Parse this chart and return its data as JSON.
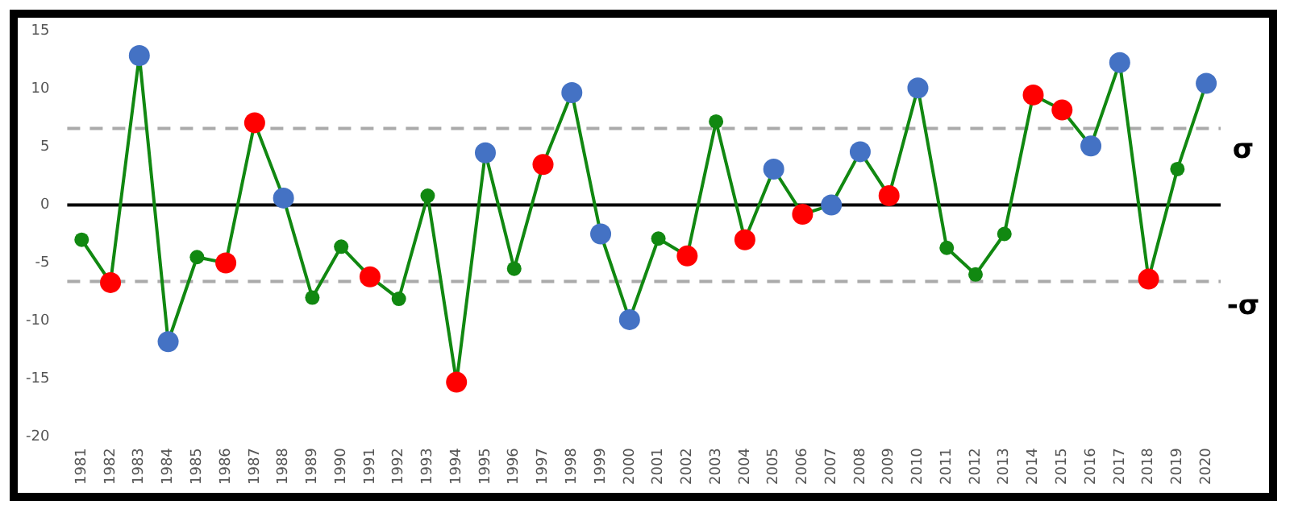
{
  "chart_data": {
    "type": "line",
    "categories": [
      "1981",
      "1982",
      "1983",
      "1984",
      "1985",
      "1986",
      "1987",
      "1988",
      "1989",
      "1990",
      "1991",
      "1992",
      "1993",
      "1994",
      "1995",
      "1996",
      "1997",
      "1998",
      "1999",
      "2000",
      "2001",
      "2002",
      "2003",
      "2004",
      "2005",
      "2006",
      "2007",
      "2008",
      "2009",
      "2010",
      "2011",
      "2012",
      "2013",
      "2014",
      "2015",
      "2016",
      "2017",
      "2018",
      "2019",
      "2020"
    ],
    "series": [
      {
        "color": "#118811",
        "values": [
          -3.0,
          -6.7,
          12.9,
          -11.8,
          -4.5,
          -5.0,
          7.1,
          0.6,
          -8.0,
          -3.6,
          -6.2,
          -8.1,
          0.8,
          -15.3,
          4.5,
          -5.5,
          3.5,
          9.7,
          -2.5,
          -9.9,
          -2.9,
          -4.4,
          7.2,
          -3.0,
          3.1,
          -0.8,
          0.0,
          4.6,
          0.8,
          10.1,
          -3.7,
          -6.0,
          -2.5,
          9.5,
          8.2,
          5.1,
          12.3,
          -6.4,
          3.1,
          10.5
        ],
        "colors": [
          "#118811",
          "#ff0000",
          "#4472c4",
          "#4472c4",
          "#118811",
          "#ff0000",
          "#ff0000",
          "#4472c4",
          "#118811",
          "#118811",
          "#ff0000",
          "#118811",
          "#118811",
          "#ff0000",
          "#4472c4",
          "#118811",
          "#ff0000",
          "#4472c4",
          "#4472c4",
          "#4472c4",
          "#118811",
          "#ff0000",
          "#118811",
          "#ff0000",
          "#4472c4",
          "#ff0000",
          "#4472c4",
          "#4472c4",
          "#ff0000",
          "#4472c4",
          "#118811",
          "#118811",
          "#118811",
          "#ff0000",
          "#ff0000",
          "#4472c4",
          "#4472c4",
          "#ff0000",
          "#118811",
          "#4472c4"
        ]
      }
    ],
    "ylim": [
      -20,
      15
    ],
    "yticks": [
      -20,
      -15,
      -10,
      -5,
      0,
      5,
      10,
      15
    ],
    "ref_lines": [
      {
        "axis": "y",
        "value": 0,
        "color": "#000000",
        "line_style": "solid"
      },
      {
        "axis": "y",
        "value": 6.6,
        "label": "σ",
        "color": "#aaaaaa",
        "line_style": "dashed"
      },
      {
        "axis": "y",
        "value": -6.6,
        "label": "-σ",
        "color": "#aaaaaa",
        "line_style": "dashed"
      }
    ],
    "grid": false,
    "legend": false,
    "marker": "circle",
    "line_style": "solid"
  }
}
